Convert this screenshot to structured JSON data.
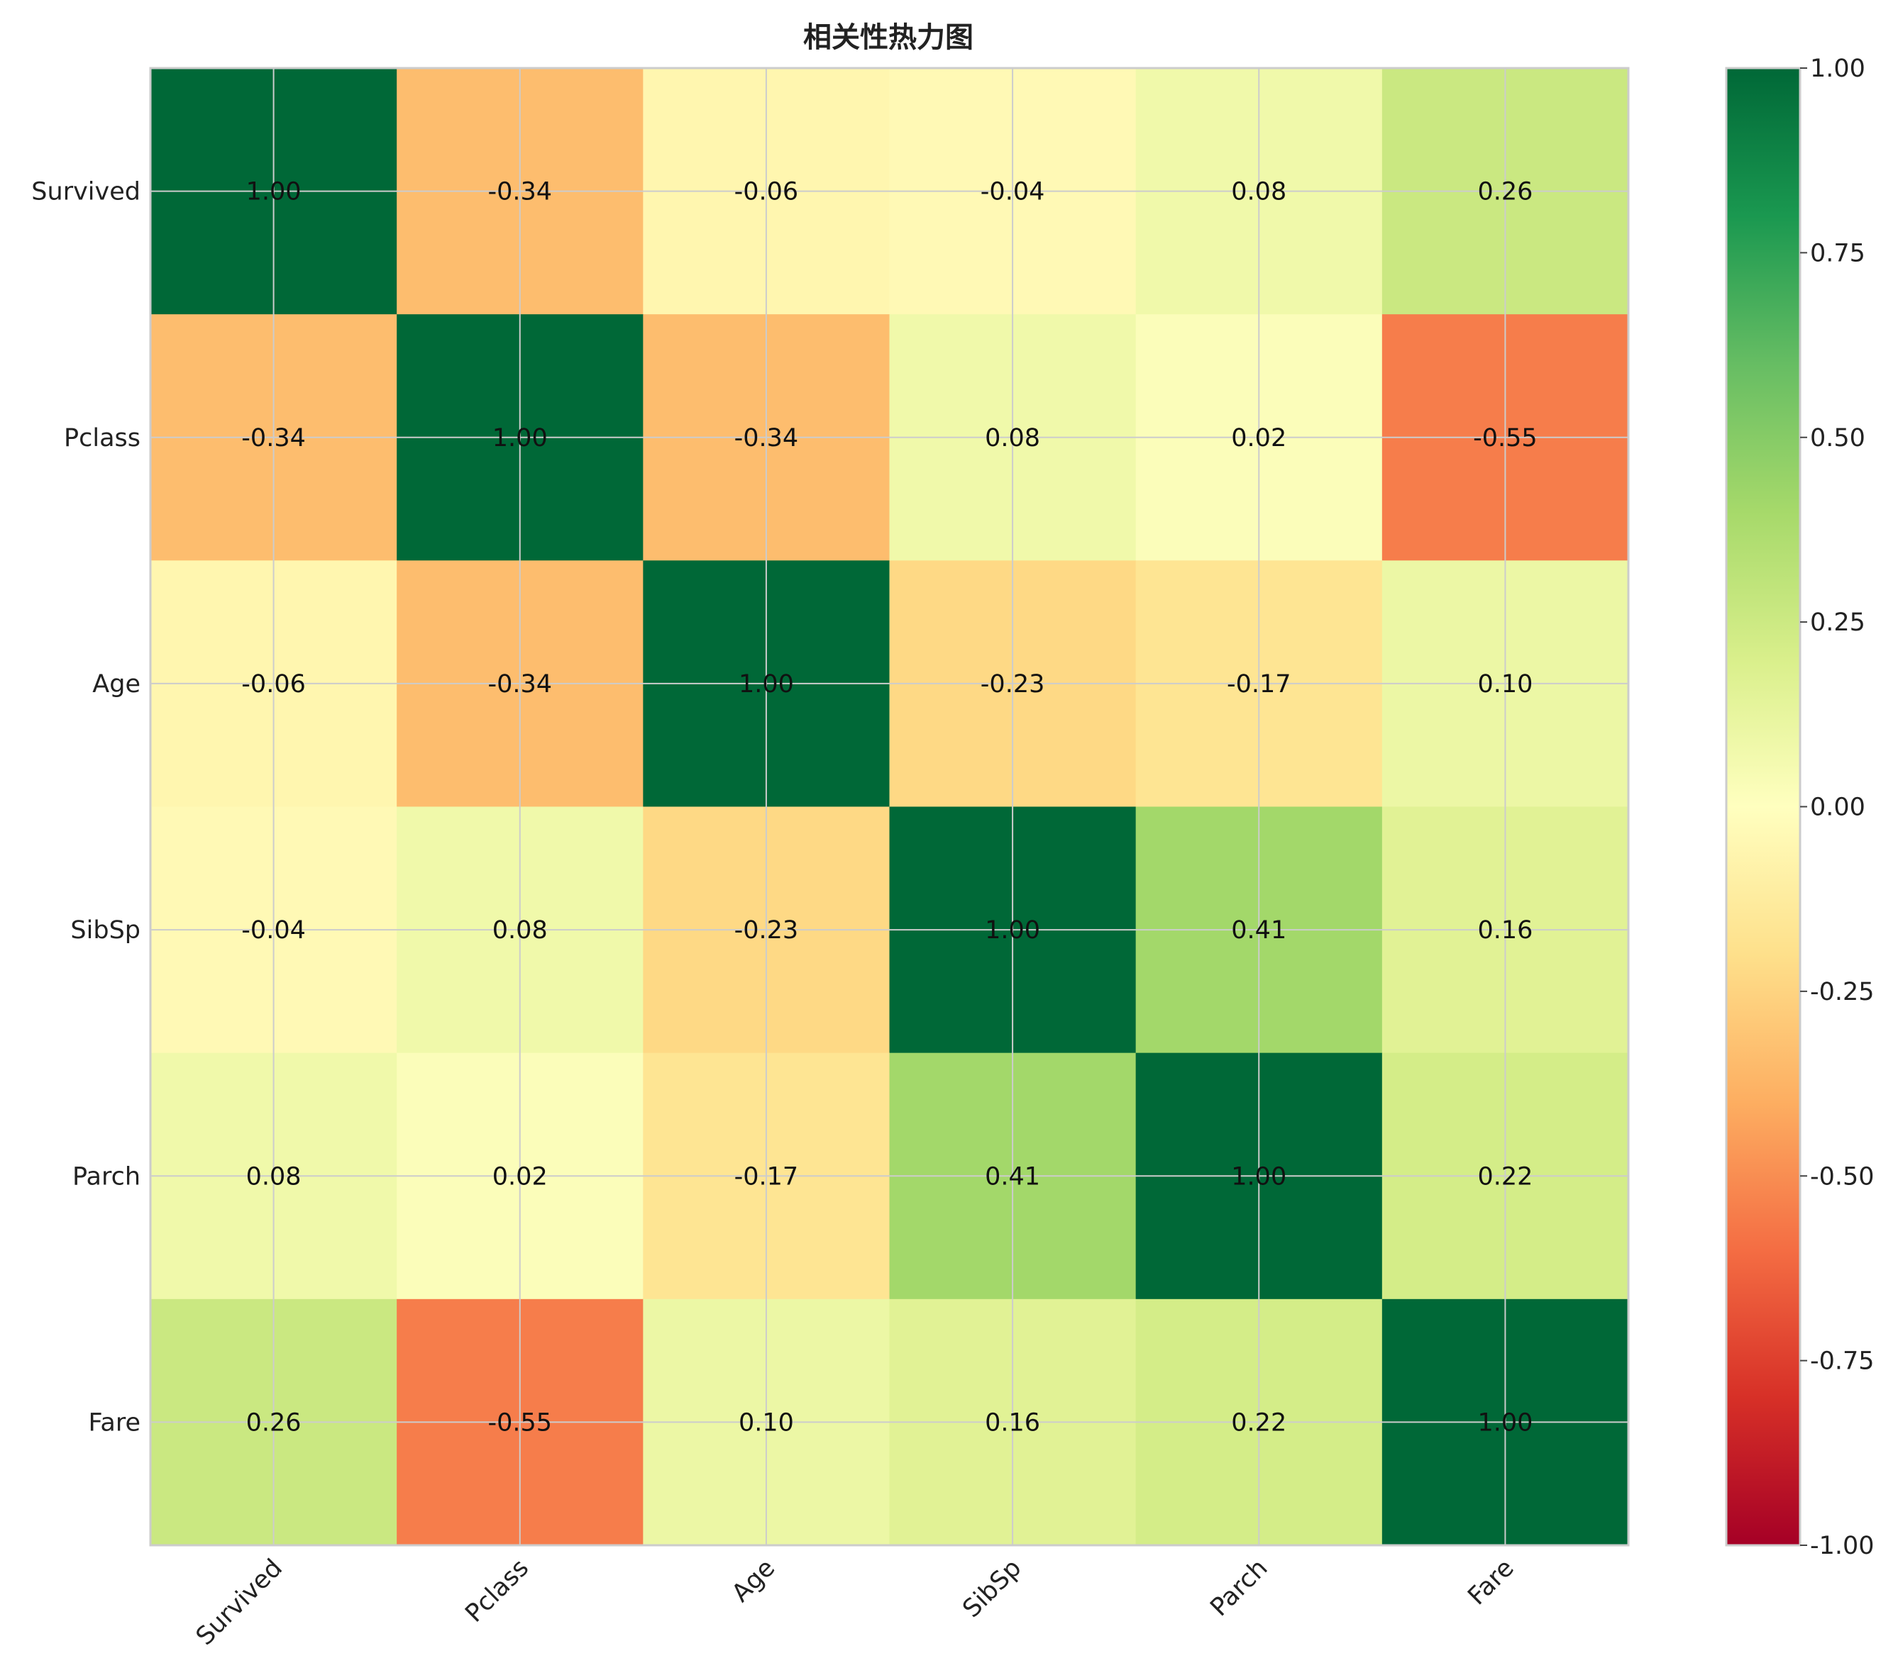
{
  "chart_data": {
    "type": "heatmap",
    "title": "相关性热力图",
    "xlabel": "",
    "ylabel": "",
    "x_categories": [
      "Survived",
      "Pclass",
      "Age",
      "SibSp",
      "Parch",
      "Fare"
    ],
    "y_categories": [
      "Survived",
      "Pclass",
      "Age",
      "SibSp",
      "Parch",
      "Fare"
    ],
    "values": [
      [
        1.0,
        -0.34,
        -0.06,
        -0.04,
        0.08,
        0.26
      ],
      [
        -0.34,
        1.0,
        -0.34,
        0.08,
        0.02,
        -0.55
      ],
      [
        -0.06,
        -0.34,
        1.0,
        -0.23,
        -0.17,
        0.1
      ],
      [
        -0.04,
        0.08,
        -0.23,
        1.0,
        0.41,
        0.16
      ],
      [
        0.08,
        0.02,
        -0.17,
        0.41,
        1.0,
        0.22
      ],
      [
        0.26,
        -0.55,
        0.1,
        0.16,
        0.22,
        1.0
      ]
    ],
    "value_labels": [
      [
        "1.00",
        "-0.34",
        "-0.06",
        "-0.04",
        "0.08",
        "0.26"
      ],
      [
        "-0.34",
        "1.00",
        "-0.34",
        "0.08",
        "0.02",
        "-0.55"
      ],
      [
        "-0.06",
        "-0.34",
        "1.00",
        "-0.23",
        "-0.17",
        "0.10"
      ],
      [
        "-0.04",
        "0.08",
        "-0.23",
        "1.00",
        "0.41",
        "0.16"
      ],
      [
        "0.08",
        "0.02",
        "-0.17",
        "0.41",
        "1.00",
        "0.22"
      ],
      [
        "0.26",
        "-0.55",
        "0.10",
        "0.16",
        "0.22",
        "1.00"
      ]
    ],
    "colorbar": {
      "range": [
        -1.0,
        1.0
      ],
      "ticks": [
        "1.00",
        "0.75",
        "0.50",
        "0.25",
        "0.00",
        "-0.25",
        "-0.50",
        "-0.75",
        "-1.00"
      ],
      "colormap": "RdYlGn",
      "stops": [
        "#a50026",
        "#d73027",
        "#f46d43",
        "#fdae61",
        "#fee08b",
        "#ffffbf",
        "#d9ef8b",
        "#a6d96a",
        "#66bd63",
        "#1a9850",
        "#006837"
      ]
    },
    "grid": true,
    "x_tick_rotation": 45
  }
}
